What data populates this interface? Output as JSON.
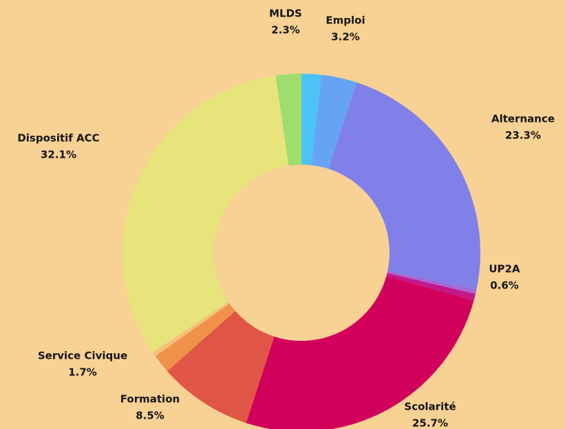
{
  "chart_data": {
    "type": "donut",
    "categories": [
      null,
      "Emploi",
      "Alternance",
      null,
      "UP2A",
      "Scolarité",
      "Formation",
      "Service Civique",
      null,
      "Dispositif ACC",
      "MLDS"
    ],
    "values": [
      1.8,
      3.2,
      23.3,
      0.4,
      0.6,
      25.7,
      8.5,
      1.7,
      0.4,
      32.1,
      2.3
    ],
    "value_labels": [
      null,
      "3.2%",
      "23.3%",
      null,
      "0.6%",
      "25.7%",
      "8.5%",
      "1.7%",
      null,
      "32.1%",
      "2.3%"
    ],
    "colors": [
      "#4cc3f7",
      "#66a3f5",
      "#8080e8",
      "#a468d8",
      "#c2188b",
      "#d1005b",
      "#e05545",
      "#f0914a",
      "#f7c07a",
      "#e6e47a",
      "#9edd6e"
    ]
  }
}
